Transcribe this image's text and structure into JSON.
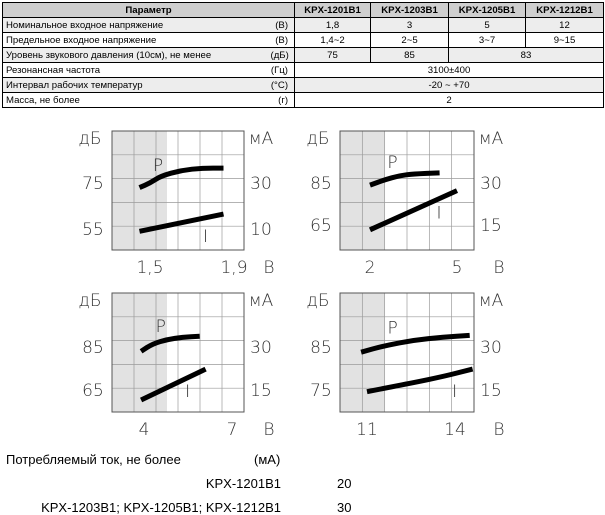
{
  "table": {
    "headers": [
      "Параметр",
      "KPX-1201B1",
      "KPX-1203B1",
      "KPX-1205B1",
      "KPX-1212B1"
    ],
    "rows": [
      {
        "param": "Номинальное входное напряжение",
        "unit": "(В)",
        "values": [
          "1,8",
          "3",
          "5",
          "12"
        ]
      },
      {
        "param": "Предельное входное напряжение",
        "unit": "(В)",
        "values": [
          "1,4~2",
          "2~5",
          "3~7",
          "9~15"
        ]
      },
      {
        "param": "Уровень звукового давления (10см), не менее",
        "unit": "(дБ)",
        "values": [
          "75",
          "85",
          "83"
        ]
      },
      {
        "param": "Резонансная частота",
        "unit": "(Гц)",
        "values": [
          "3100±400"
        ]
      },
      {
        "param": "Интервал рабочих температур",
        "unit": "(°С)",
        "values": [
          "-20 ~ +70"
        ]
      },
      {
        "param": "Масса, не более",
        "unit": "(г)",
        "values": [
          "2"
        ]
      }
    ]
  },
  "chart_data": [
    {
      "type": "line",
      "left_unit": "дБ",
      "right_unit": "мА",
      "x_unit": "В",
      "x_ticks": [
        "1,5",
        "1,9"
      ],
      "left_ticks": [
        "75",
        "55"
      ],
      "right_ticks": [
        "30",
        "10"
      ],
      "series": [
        {
          "name": "P",
          "x": [
            1.45,
            1.5,
            1.55,
            1.65,
            1.75,
            1.85
          ],
          "y": [
            73,
            75,
            78,
            80.5,
            81.5,
            81.5
          ]
        },
        {
          "name": "I",
          "x": [
            1.45,
            1.85
          ],
          "y": [
            9,
            16.5
          ]
        }
      ]
    },
    {
      "type": "line",
      "left_unit": "дБ",
      "right_unit": "мА",
      "x_unit": "В",
      "x_ticks": [
        "2",
        "5"
      ],
      "left_ticks": [
        "85",
        "65"
      ],
      "right_ticks": [
        "30",
        "15"
      ],
      "series": [
        {
          "name": "P",
          "x": [
            2,
            2.5,
            3,
            3.5,
            4.4
          ],
          "y": [
            84,
            86.5,
            88.5,
            89.3,
            89.8
          ]
        },
        {
          "name": "I",
          "x": [
            2,
            5
          ],
          "y": [
            13.3,
            27.3
          ]
        }
      ]
    },
    {
      "type": "line",
      "left_unit": "дБ",
      "right_unit": "мА",
      "x_unit": "В",
      "x_ticks": [
        "4",
        "7"
      ],
      "left_ticks": [
        "85",
        "65"
      ],
      "right_ticks": [
        "30",
        "15"
      ],
      "series": [
        {
          "name": "P",
          "x": [
            3.9,
            4.3,
            4.8,
            5.3,
            5.9
          ],
          "y": [
            83,
            86.5,
            88.5,
            89.5,
            90
          ]
        },
        {
          "name": "I",
          "x": [
            3.9,
            6.1
          ],
          "y": [
            11.5,
            22.3
          ]
        }
      ]
    },
    {
      "type": "line",
      "left_unit": "дБ",
      "right_unit": "мА",
      "x_unit": "В",
      "x_ticks": [
        "11",
        "14"
      ],
      "left_ticks": [
        "85",
        "75"
      ],
      "right_ticks": [
        "30",
        "15"
      ],
      "series": [
        {
          "name": "P",
          "x": [
            10.8,
            11.6,
            12.6,
            13.6,
            14.5
          ],
          "y": [
            83.8,
            85.3,
            86.6,
            87.3,
            87.7
          ]
        },
        {
          "name": "I",
          "x": [
            11,
            13.4,
            14.6
          ],
          "y": [
            14.4,
            19.2,
            22.3
          ]
        }
      ]
    }
  ],
  "footer": {
    "current_label": "Потребляемый ток, не более",
    "current_unit": "(мА)",
    "rows": [
      {
        "models": "KPX-1201B1",
        "value": "20"
      },
      {
        "models": "KPX-1203B1; KPX-1205B1; KPX-1212B1",
        "value": "30"
      }
    ]
  }
}
